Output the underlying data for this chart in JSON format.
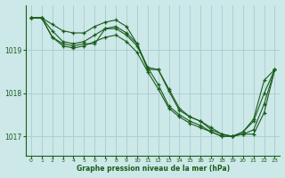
{
  "background_color": "#cce8e8",
  "grid_color": "#aacccc",
  "line_color": "#1a5c1a",
  "ylabel_ticks": [
    1017,
    1018,
    1019
  ],
  "xlabel_ticks": [
    0,
    1,
    2,
    3,
    4,
    5,
    6,
    7,
    8,
    9,
    10,
    11,
    12,
    13,
    14,
    15,
    16,
    17,
    18,
    19,
    20,
    21,
    22,
    23
  ],
  "xlabel": "Graphe pression niveau de la mer (hPa)",
  "ylim": [
    1016.55,
    1020.05
  ],
  "xlim": [
    -0.5,
    23.5
  ],
  "series": [
    [
      1019.75,
      1019.75,
      1019.3,
      1019.15,
      1019.1,
      1019.15,
      1019.15,
      1019.5,
      1019.55,
      1019.4,
      1019.15,
      1018.6,
      1018.55,
      1018.1,
      1017.65,
      1017.45,
      1017.35,
      1017.2,
      1017.05,
      1017.0,
      1017.1,
      1017.4,
      1018.3,
      1018.55
    ],
    [
      1019.75,
      1019.75,
      1019.3,
      1019.1,
      1019.05,
      1019.1,
      1019.2,
      1019.3,
      1019.35,
      1019.2,
      1018.95,
      1018.5,
      1018.1,
      1017.65,
      1017.45,
      1017.3,
      1017.2,
      1017.1,
      1017.0,
      1017.0,
      1017.05,
      1017.15,
      1017.75,
      1018.55
    ],
    [
      1019.75,
      1019.75,
      1019.45,
      1019.2,
      1019.15,
      1019.2,
      1019.35,
      1019.5,
      1019.5,
      1019.35,
      1019.1,
      1018.6,
      1018.2,
      1017.7,
      1017.5,
      1017.35,
      1017.25,
      1017.1,
      1017.0,
      1017.0,
      1017.1,
      1017.35,
      1018.0,
      1018.55
    ],
    [
      1019.75,
      1019.75,
      1019.6,
      1019.45,
      1019.4,
      1019.4,
      1019.55,
      1019.65,
      1019.7,
      1019.55,
      1019.15,
      1018.55,
      1018.55,
      1018.05,
      1017.6,
      1017.45,
      1017.35,
      1017.15,
      1017.05,
      1017.0,
      1017.05,
      1017.05,
      1017.55,
      1018.55
    ]
  ]
}
